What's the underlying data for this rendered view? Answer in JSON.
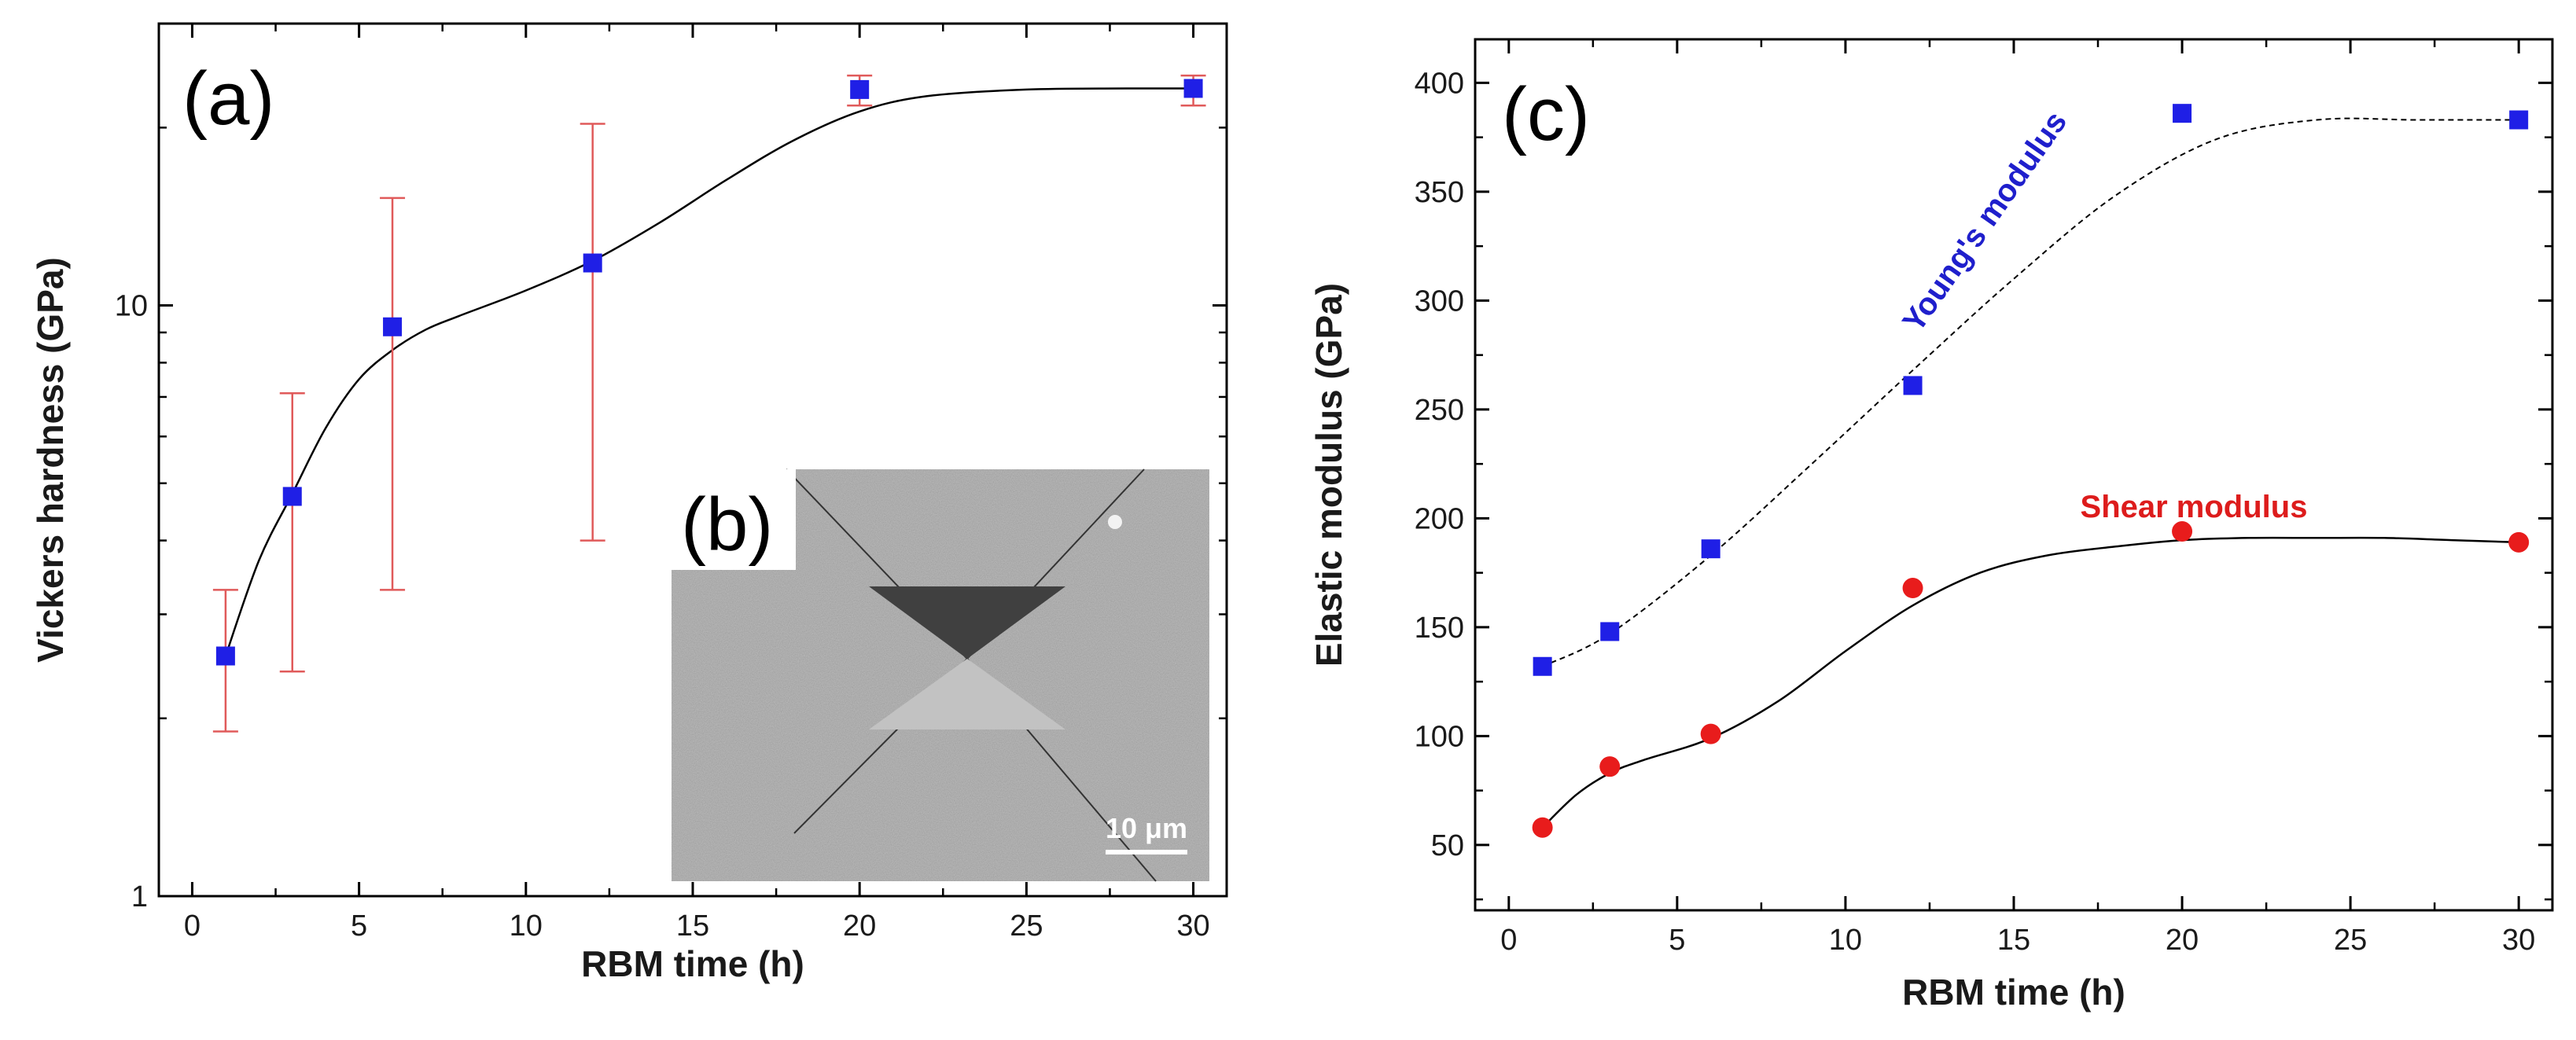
{
  "colors": {
    "square_marker": "#1f1fe6",
    "circle_marker": "#e81c1c",
    "error_bar": "#e05a5a",
    "young_label": "#1f1fcc",
    "shear_label": "#dd1c1c",
    "fit_line": "#000000",
    "sem_bg": "#8d8d8d"
  },
  "chart_data": [
    {
      "type": "scatter",
      "panel_label": "(a)",
      "title": "",
      "xlabel": "RBM time (h)",
      "ylabel": "Vickers hardness (GPa)",
      "xlim": [
        -1,
        31
      ],
      "ylim": [
        1,
        30
      ],
      "yscale": "log",
      "xticks": [
        0,
        5,
        10,
        15,
        20,
        25,
        30
      ],
      "xtick_labels": [
        "0",
        "5",
        "10",
        "15",
        "20",
        "25",
        "30"
      ],
      "yticks": [
        1,
        10
      ],
      "ytick_labels": [
        "1",
        "10"
      ],
      "series": [
        {
          "name": "Vickers hardness",
          "marker": "square",
          "x": [
            1,
            3,
            6,
            12,
            20,
            30
          ],
          "y": [
            2.55,
            4.75,
            9.2,
            11.8,
            23.2,
            23.3
          ],
          "err_low": [
            1.9,
            2.4,
            3.3,
            4.0,
            21.8,
            21.8
          ],
          "err_high": [
            3.3,
            7.1,
            15.2,
            20.3,
            24.5,
            24.5
          ]
        }
      ],
      "fit_curve": {
        "x": [
          1,
          2,
          3,
          4,
          5,
          6,
          7,
          8,
          10,
          12,
          14,
          16,
          18,
          20,
          22,
          25,
          28,
          30
        ],
        "y": [
          2.55,
          3.7,
          4.8,
          6.2,
          7.5,
          8.4,
          9.1,
          9.6,
          10.6,
          11.9,
          13.8,
          16.3,
          19.0,
          21.3,
          22.6,
          23.2,
          23.3,
          23.3
        ]
      },
      "inset": {
        "label": "(b)",
        "scale_bar": "10 μm"
      }
    },
    {
      "type": "scatter",
      "panel_label": "(c)",
      "title": "",
      "xlabel": "RBM time (h)",
      "ylabel": "Elastic modulus (GPa)",
      "xlim": [
        -1,
        31
      ],
      "ylim": [
        20,
        420
      ],
      "xticks": [
        0,
        5,
        10,
        15,
        20,
        25,
        30
      ],
      "xtick_labels": [
        "0",
        "5",
        "10",
        "15",
        "20",
        "25",
        "30"
      ],
      "yticks": [
        50,
        100,
        150,
        200,
        250,
        300,
        350,
        400
      ],
      "ytick_labels": [
        "50",
        "100",
        "150",
        "200",
        "250",
        "300",
        "350",
        "400"
      ],
      "series": [
        {
          "name": "Young's modulus",
          "marker": "square",
          "x": [
            1,
            3,
            6,
            12,
            20,
            30
          ],
          "y": [
            132,
            148,
            186,
            261,
            386,
            383
          ],
          "fit": {
            "style": "dashed",
            "x": [
              1,
              3,
              6,
              9,
              12,
              15,
              18,
              21,
              24,
              27,
              30
            ],
            "y": [
              132,
              147,
              183,
              225,
              268,
              310,
              348,
              374,
              383,
              383,
              383
            ]
          }
        },
        {
          "name": "Shear modulus",
          "marker": "circle",
          "x": [
            1,
            3,
            6,
            12,
            20,
            30
          ],
          "y": [
            58,
            86,
            101,
            168,
            194,
            189
          ],
          "fit": {
            "style": "solid",
            "x": [
              1,
              2,
              3,
              4,
              6,
              8,
              10,
              12,
              14,
              16,
              18,
              20,
              22,
              24,
              26,
              28,
              30
            ],
            "y": [
              58,
              73,
              83,
              89,
              99,
              116,
              139,
              160,
              175,
              183,
              187,
              190,
              191,
              191,
              191,
              190,
              189
            ]
          }
        }
      ]
    }
  ]
}
